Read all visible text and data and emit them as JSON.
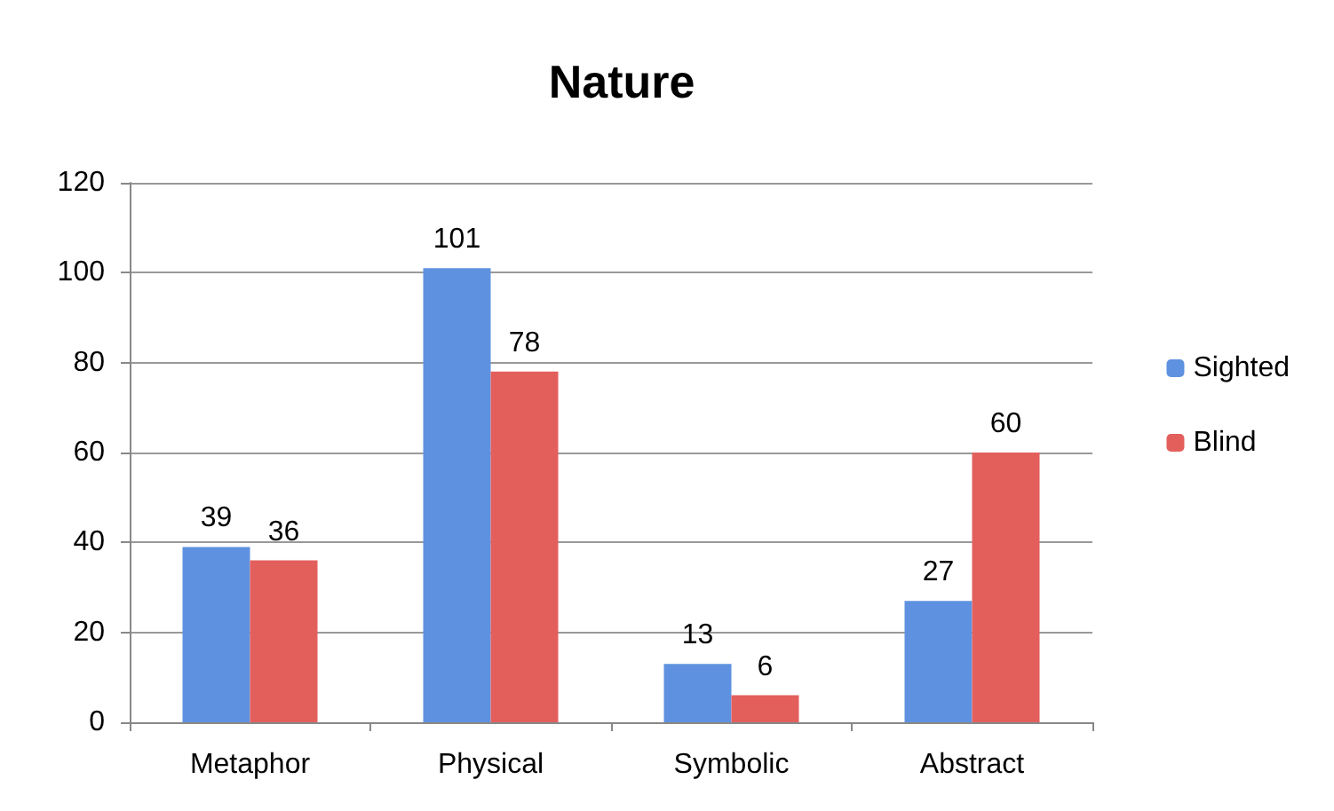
{
  "chart_data": {
    "type": "bar",
    "title": "Nature",
    "categories": [
      "Metaphor",
      "Physical",
      "Symbolic",
      "Abstract"
    ],
    "series": [
      {
        "name": "Sighted",
        "color": "#5e92e0",
        "values": [
          39,
          101,
          13,
          27
        ]
      },
      {
        "name": "Blind",
        "color": "#e35f5c",
        "values": [
          36,
          78,
          6,
          60
        ]
      }
    ],
    "ylim": [
      0,
      120
    ],
    "yticks": [
      0,
      20,
      40,
      60,
      80,
      100,
      120
    ],
    "grid": "y",
    "legend": "right",
    "data_labels": true
  }
}
